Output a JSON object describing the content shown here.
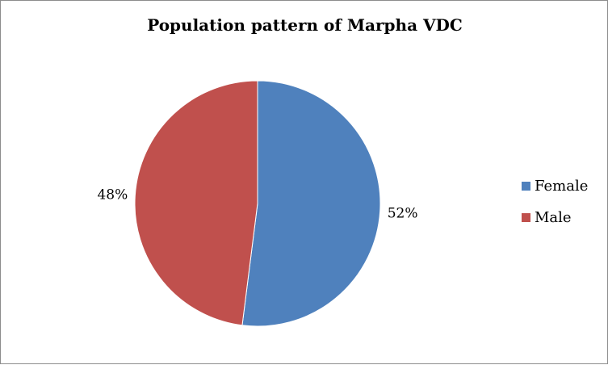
{
  "chart_data": {
    "type": "pie",
    "title": "Population pattern of Marpha VDC",
    "slices": [
      {
        "name": "Female",
        "value": 52,
        "label": "52%",
        "color": "#4f81bd"
      },
      {
        "name": "Male",
        "value": 48,
        "label": "48%",
        "color": "#c0504d"
      }
    ],
    "legend_position": "right",
    "start_angle": "12 o'clock",
    "direction": "clockwise"
  }
}
